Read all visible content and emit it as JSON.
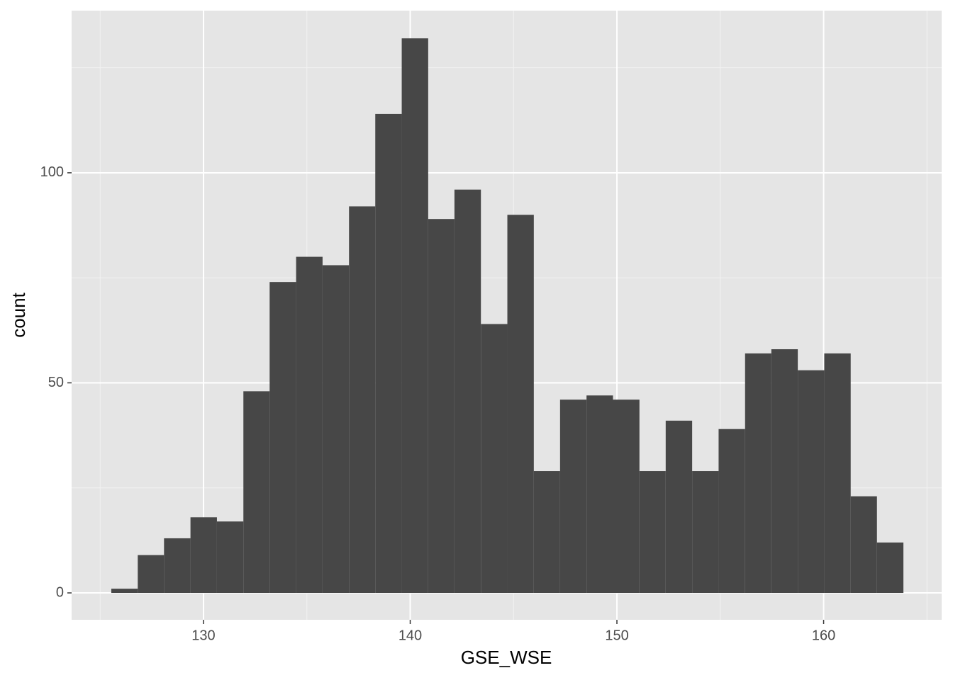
{
  "chart_data": {
    "type": "histogram",
    "x_label": "GSE_WSE",
    "y_label": "count",
    "bins": [
      125.54,
      126.82,
      128.09,
      129.37,
      130.65,
      131.93,
      133.2,
      134.48,
      135.76,
      137.04,
      138.31,
      139.59,
      140.87,
      142.14,
      143.42,
      144.7,
      145.98,
      147.25,
      148.53,
      149.81,
      151.09,
      152.36,
      153.64,
      154.92,
      156.2,
      157.47,
      158.75,
      160.03,
      161.31,
      162.58,
      163.86
    ],
    "values": [
      1,
      9,
      13,
      18,
      17,
      48,
      74,
      80,
      78,
      92,
      114,
      132,
      89,
      96,
      64,
      90,
      29,
      46,
      47,
      46,
      29,
      41,
      29,
      39,
      57,
      58,
      53,
      57,
      23,
      12
    ],
    "color": "#474747",
    "xlim": [
      123.62,
      165.71
    ],
    "ylim": [
      -6.4,
      138.6
    ],
    "xticks": [
      130,
      140,
      150,
      160
    ],
    "yticks": [
      0,
      50,
      100
    ],
    "xminor": [
      125,
      135,
      145,
      155,
      165
    ],
    "yminor": [
      25,
      75,
      125
    ],
    "grid": true
  }
}
